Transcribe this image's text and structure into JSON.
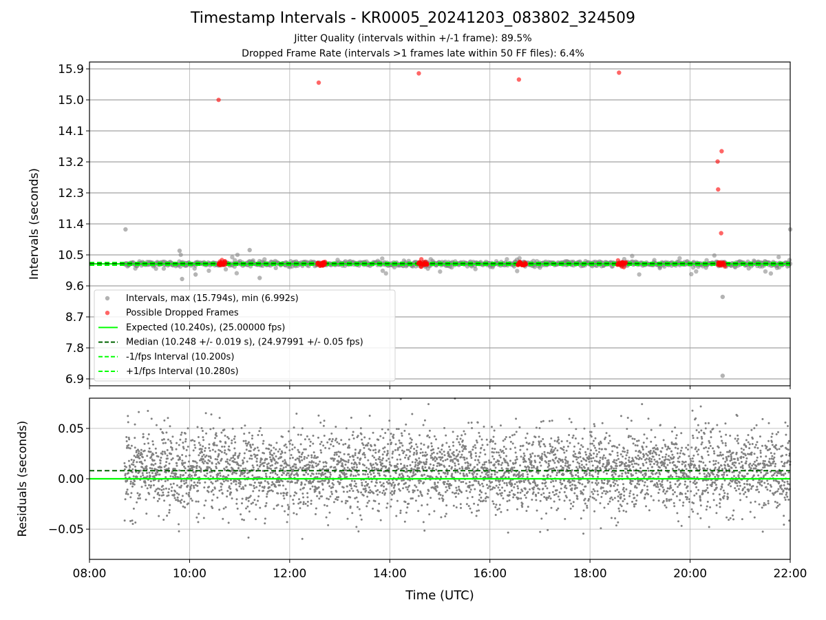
{
  "figure": {
    "title": "Timestamp Intervals - KR0005_20241203_083802_324509",
    "subtitle_1": "Jitter Quality (intervals within +/-1 frame): 89.5%",
    "subtitle_2": "Dropped Frame Rate (intervals >1 frames late within 50 FF files): 6.4%"
  },
  "chart_data": [
    {
      "type": "scatter",
      "panel": "top",
      "ylabel": "Intervals (seconds)",
      "ylim": [
        6.7,
        16.1
      ],
      "yticks": [
        6.9,
        7.8,
        8.7,
        9.6,
        10.5,
        11.4,
        12.3,
        13.2,
        14.1,
        15.0,
        15.9
      ],
      "ytick_labels": [
        "6.9",
        "7.8",
        "8.7",
        "9.6",
        "10.5",
        "11.4",
        "12.3",
        "13.2",
        "14.1",
        "15.0",
        "15.9"
      ],
      "xlim_hours": [
        8,
        22
      ],
      "grid": true,
      "legend_position": "lower-left",
      "legend": [
        {
          "label": "Intervals, max (15.794s), min (6.992s)",
          "kind": "point",
          "color": "#808080"
        },
        {
          "label": "Possible Dropped Frames",
          "kind": "point",
          "color": "#ff0000"
        },
        {
          "label": "Expected (10.240s), (25.00000 fps)",
          "kind": "solid",
          "color": "#00ff00"
        },
        {
          "label": "Median (10.248 +/- 0.019 s), (24.97991 +/- 0.05 fps)",
          "kind": "dashed",
          "color": "#006400"
        },
        {
          "label": "-1/fps Interval (10.200s)",
          "kind": "dashed",
          "color": "#00ff00"
        },
        {
          "label": "+1/fps Interval (10.280s)",
          "kind": "dashed",
          "color": "#00ff00"
        }
      ],
      "lines": {
        "expected": 10.24,
        "median": 10.248,
        "minus_1fps": 10.2,
        "plus_1fps": 10.28
      },
      "series": [
        {
          "name": "Intervals, max (15.794s), min (6.992s)",
          "color": "#808080",
          "band": {
            "x_start_hour": 8.7,
            "x_end_hour": 22.0,
            "center": 10.24
          },
          "outliers": [
            {
              "x": 8.72,
              "y": 11.24
            },
            {
              "x": 9.8,
              "y": 10.62
            },
            {
              "x": 9.85,
              "y": 9.8
            },
            {
              "x": 10.12,
              "y": 9.93
            },
            {
              "x": 11.2,
              "y": 10.64
            },
            {
              "x": 11.4,
              "y": 9.83
            },
            {
              "x": 20.65,
              "y": 9.28
            },
            {
              "x": 20.65,
              "y": 6.99
            },
            {
              "x": 22.0,
              "y": 11.24
            }
          ]
        },
        {
          "name": "Possible Dropped Frames",
          "color": "#ff0000",
          "points": [
            {
              "x": 10.58,
              "y": 15.0
            },
            {
              "x": 12.58,
              "y": 15.5
            },
            {
              "x": 14.58,
              "y": 15.77
            },
            {
              "x": 16.58,
              "y": 15.59
            },
            {
              "x": 18.58,
              "y": 15.79
            },
            {
              "x": 20.55,
              "y": 13.21
            },
            {
              "x": 20.63,
              "y": 13.51
            },
            {
              "x": 20.56,
              "y": 12.4
            },
            {
              "x": 20.62,
              "y": 11.13
            }
          ],
          "clusters": [
            {
              "x_start": 10.58,
              "x_end": 10.72
            },
            {
              "x_start": 12.55,
              "x_end": 12.72
            },
            {
              "x_start": 14.55,
              "x_end": 14.75
            },
            {
              "x_start": 16.55,
              "x_end": 16.72
            },
            {
              "x_start": 18.55,
              "x_end": 18.72
            },
            {
              "x_start": 20.55,
              "x_end": 20.72
            }
          ]
        }
      ]
    },
    {
      "type": "scatter",
      "panel": "bottom",
      "xlabel": "Time (UTC)",
      "ylabel": "Residuals (seconds)",
      "ylim": [
        -0.08,
        0.08
      ],
      "yticks": [
        -0.05,
        0.0,
        0.05
      ],
      "ytick_labels": [
        "−0.05",
        "0.00",
        "0.05"
      ],
      "xlim_hours": [
        8,
        22
      ],
      "xticks_hours": [
        8,
        10,
        12,
        14,
        16,
        18,
        20,
        22
      ],
      "xtick_labels": [
        "08:00",
        "10:00",
        "12:00",
        "14:00",
        "16:00",
        "18:00",
        "20:00",
        "22:00"
      ],
      "grid": true,
      "lines": {
        "zero": 0.0,
        "median_offset": 0.008
      },
      "series": [
        {
          "name": "Residuals",
          "color": "#808080",
          "x_start_hour": 8.7,
          "x_end_hour": 22.0,
          "spread_std": 0.02
        }
      ]
    }
  ]
}
